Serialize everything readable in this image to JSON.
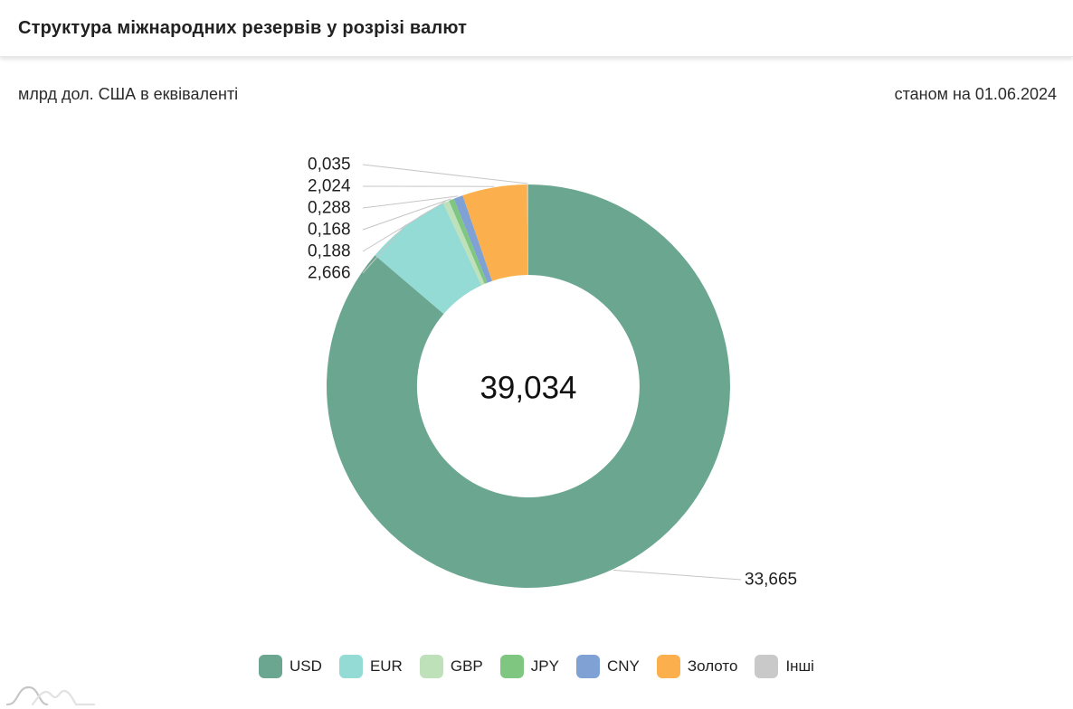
{
  "header": {
    "title": "Структура міжнародних резервів у розрізі валют"
  },
  "meta": {
    "unit_label": "млрд дол. США в еквіваленті",
    "as_of": "станом на 01.06.2024"
  },
  "chart_data": {
    "type": "pie",
    "subtype": "donut",
    "title": "Структура міжнародних резервів у розрізі валют",
    "unit": "млрд дол. США в еквіваленті",
    "as_of": "01.06.2024",
    "center_total": 39.034,
    "center_total_label": "39,034",
    "legend_position": "bottom",
    "grid": false,
    "series": [
      {
        "name": "USD",
        "slug": "usd",
        "value": 33.665,
        "display": "33,665",
        "color": "#6AA690"
      },
      {
        "name": "EUR",
        "slug": "eur",
        "value": 2.666,
        "display": "2,666",
        "color": "#93DBD4"
      },
      {
        "name": "GBP",
        "slug": "gbp",
        "value": 0.188,
        "display": "0,188",
        "color": "#BFE1BA"
      },
      {
        "name": "JPY",
        "slug": "jpy",
        "value": 0.168,
        "display": "0,168",
        "color": "#7FC681"
      },
      {
        "name": "CNY",
        "slug": "cny",
        "value": 0.288,
        "display": "0,288",
        "color": "#7FA1D3"
      },
      {
        "name": "Золото",
        "slug": "gold",
        "value": 2.024,
        "display": "2,024",
        "color": "#FBB04D"
      },
      {
        "name": "Інші",
        "slug": "other",
        "value": 0.035,
        "display": "0,035",
        "color": "#C9C9C9"
      }
    ]
  }
}
